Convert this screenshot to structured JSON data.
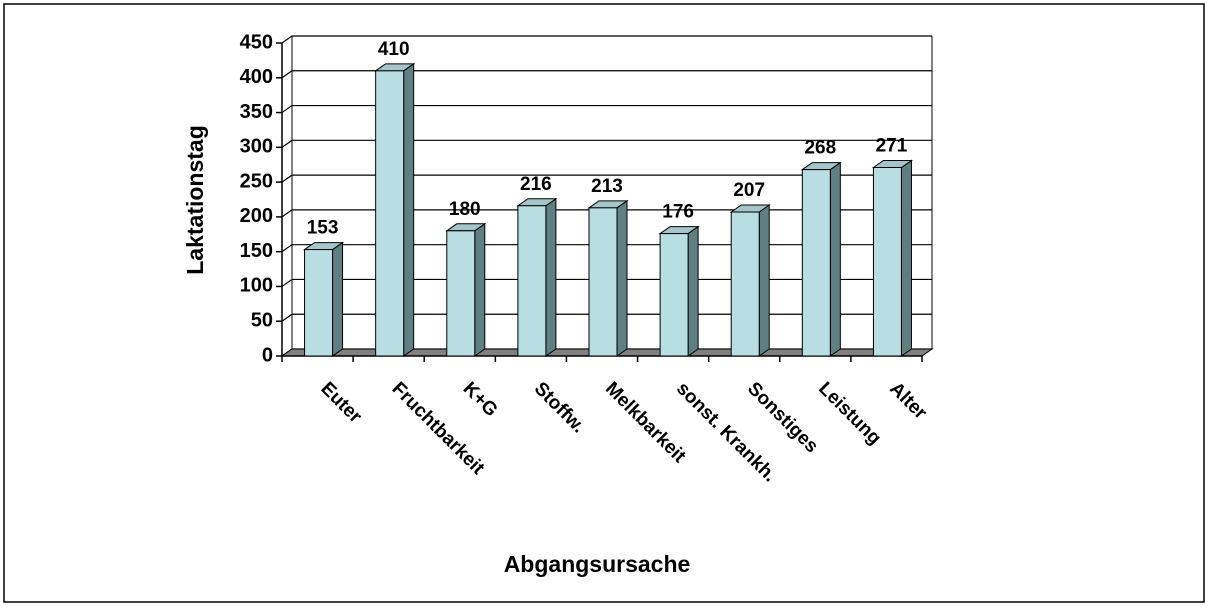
{
  "chart_data": {
    "type": "bar",
    "x_label": "Abgangsursache",
    "y_label": "Laktationstag",
    "categories": [
      "Euter",
      "Fruchtbarkeit",
      "K+G",
      "Stoffw.",
      "Melkbarkeit",
      "sonst. Krankh.",
      "Sonstiges",
      "Leistung",
      "Alter"
    ],
    "values": [
      153,
      410,
      180,
      216,
      213,
      176,
      207,
      268,
      271
    ],
    "color": "#b8dde3",
    "side_color": "#5f8083",
    "top_color": "#a4c6ca",
    "ylim": [
      0,
      450
    ],
    "yticks": [
      0,
      50,
      100,
      150,
      200,
      250,
      300,
      350,
      400,
      450
    ],
    "grid": true,
    "three_d": true
  }
}
